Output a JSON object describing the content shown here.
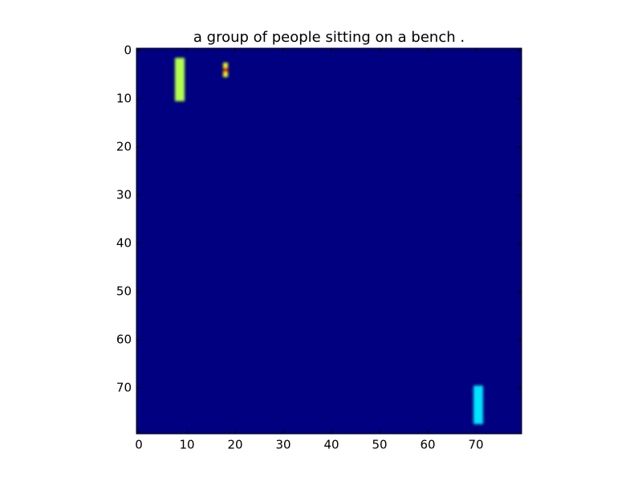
{
  "chart_data": {
    "type": "heatmap",
    "title": "a group of people sitting on a bench .",
    "xlim": [
      -0.5,
      79.5
    ],
    "ylim": [
      79.5,
      -0.5
    ],
    "xticks": [
      0,
      10,
      20,
      30,
      40,
      50,
      60,
      70
    ],
    "yticks": [
      0,
      10,
      20,
      30,
      40,
      50,
      60,
      70
    ],
    "colormap": "jet",
    "clim": [
      0,
      1
    ],
    "background_value": 0,
    "cells": [
      {
        "x": [
          8,
          9
        ],
        "y": [
          2,
          10
        ],
        "value": 0.55
      },
      {
        "x": [
          18,
          18
        ],
        "y": [
          3,
          3
        ],
        "value": 0.6
      },
      {
        "x": [
          18,
          18
        ],
        "y": [
          4,
          4
        ],
        "value": 0.9
      },
      {
        "x": [
          18,
          18
        ],
        "y": [
          5,
          5
        ],
        "value": 0.6
      },
      {
        "x": [
          70,
          71
        ],
        "y": [
          70,
          77
        ],
        "value": 0.35
      }
    ]
  }
}
